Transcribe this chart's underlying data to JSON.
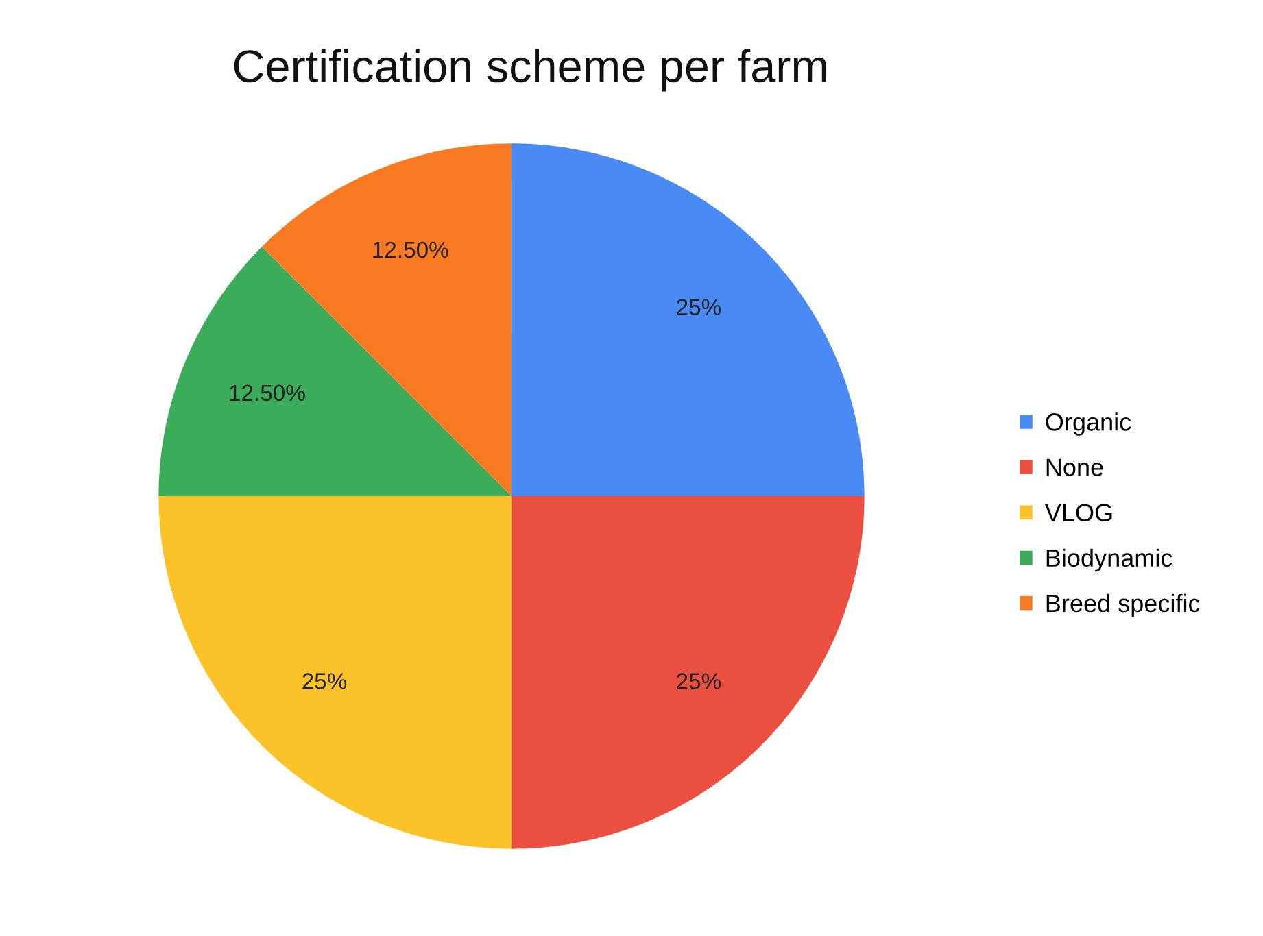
{
  "chart_data": {
    "type": "pie",
    "title": "Certification scheme per farm",
    "categories": [
      "Organic",
      "None",
      "VLOG",
      "Biodynamic",
      "Breed specific"
    ],
    "values": [
      25,
      25,
      25,
      12.5,
      12.5
    ],
    "colors": [
      "#4a8af4",
      "#ea4f3f",
      "#fbc22a",
      "#3dac5a",
      "#fa7a23"
    ],
    "value_labels": [
      "25%",
      "25%",
      "25%",
      "12.50%",
      "12.50%"
    ],
    "legend": "right"
  }
}
